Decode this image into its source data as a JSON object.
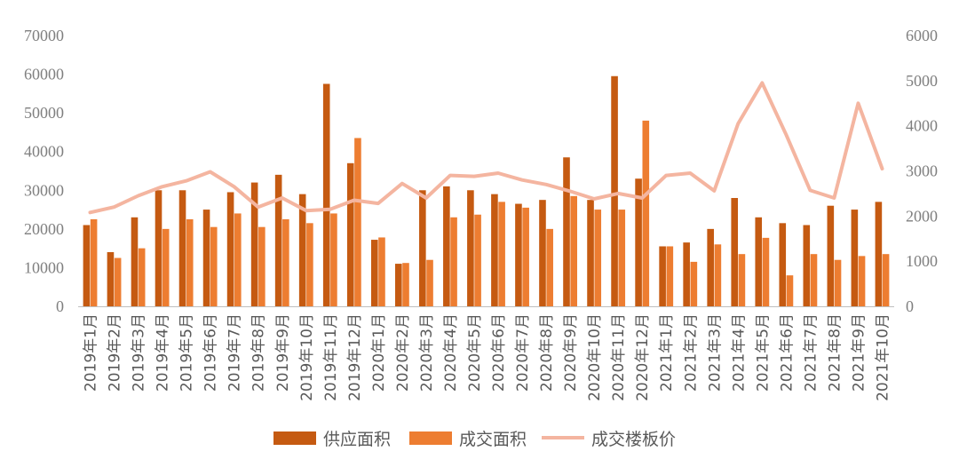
{
  "chart_data": {
    "type": "bar",
    "categories": [
      "2019年1月",
      "2019年2月",
      "2019年3月",
      "2019年4月",
      "2019年5月",
      "2019年6月",
      "2019年7月",
      "2019年8月",
      "2019年9月",
      "2019年10月",
      "2019年11月",
      "2019年12月",
      "2020年1月",
      "2020年2月",
      "2020年3月",
      "2020年4月",
      "2020年5月",
      "2020年6月",
      "2020年7月",
      "2020年8月",
      "2020年9月",
      "2020年10月",
      "2020年11月",
      "2020年12月",
      "2021年1月",
      "2021年2月",
      "2021年3月",
      "2021年4月",
      "2021年5月",
      "2021年6月",
      "2021年7月",
      "2021年8月",
      "2021年9月",
      "2021年10月"
    ],
    "series": [
      {
        "name": "供应面积",
        "kind": "bar",
        "axis": "left",
        "color": "#c55a11",
        "values": [
          21000,
          14000,
          23000,
          30000,
          30000,
          25000,
          29500,
          32000,
          34000,
          29000,
          57500,
          37000,
          17200,
          11000,
          30000,
          31000,
          30000,
          29000,
          26500,
          27500,
          38500,
          27500,
          59500,
          33000,
          15500,
          16500,
          20000,
          28000,
          23000,
          21500,
          21000,
          26000,
          25000,
          27000
        ]
      },
      {
        "name": "成交面积",
        "kind": "bar",
        "axis": "left",
        "color": "#ed7d31",
        "values": [
          22500,
          12500,
          15000,
          20000,
          22500,
          20500,
          24000,
          20500,
          22500,
          21500,
          24000,
          43500,
          17800,
          11200,
          12000,
          23000,
          23700,
          27000,
          25500,
          20000,
          28500,
          25000,
          25000,
          48000,
          15500,
          11500,
          16000,
          13500,
          17700,
          8000,
          13500,
          12000,
          13000,
          13500
        ]
      },
      {
        "name": "成交楼板价",
        "kind": "line",
        "axis": "right",
        "color": "#f4b5a0",
        "values": [
          2080,
          2200,
          2450,
          2650,
          2780,
          2980,
          2650,
          2200,
          2400,
          2120,
          2150,
          2350,
          2280,
          2720,
          2400,
          2900,
          2880,
          2950,
          2800,
          2700,
          2550,
          2380,
          2500,
          2400,
          2900,
          2950,
          2560,
          4050,
          4950,
          3800,
          2570,
          2400,
          4500,
          3050
        ]
      }
    ],
    "y_left": {
      "ylim": [
        0,
        70000
      ],
      "ticks": [
        "0",
        "10000",
        "20000",
        "30000",
        "40000",
        "50000",
        "60000",
        "70000"
      ]
    },
    "y_right": {
      "ylim": [
        0,
        6000
      ],
      "ticks": [
        "0",
        "1000",
        "2000",
        "3000",
        "4000",
        "5000",
        "6000"
      ]
    },
    "legend_position": "bottom",
    "grid": false
  }
}
